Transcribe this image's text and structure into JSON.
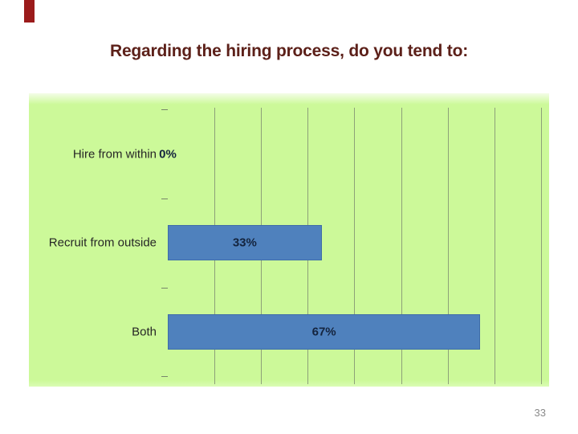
{
  "slide": {
    "title": "Regarding the hiring process, do you tend to:",
    "page_number": "33"
  },
  "theme": {
    "title_color": "#5c2019",
    "accent_bar_color": "#9b1b1b",
    "page_number_color": "#8a8a8a",
    "slide_background": "#ffffff"
  },
  "chart_data": {
    "type": "bar",
    "orientation": "horizontal",
    "title": "",
    "categories": [
      "Hire from within",
      "Recruit from outside",
      "Both"
    ],
    "values": [
      0,
      33,
      67
    ],
    "data_labels": [
      "0%",
      "33%",
      "67%"
    ],
    "unit": "%",
    "xlim": [
      0,
      80
    ],
    "gridline_step": 10,
    "grid": true,
    "legend": false,
    "plot_background": "#ccf999",
    "plot_background_top_fade": "#f4fde8",
    "plot_background_bottom_fade": "#dbfcb4",
    "bar_color": "#4f81bd",
    "bar_border_color": "#3f6da8",
    "gridline_color": "#8da179",
    "tick_color": "#78866b",
    "category_label_color": "#262626",
    "data_label_color": "#14243e"
  }
}
